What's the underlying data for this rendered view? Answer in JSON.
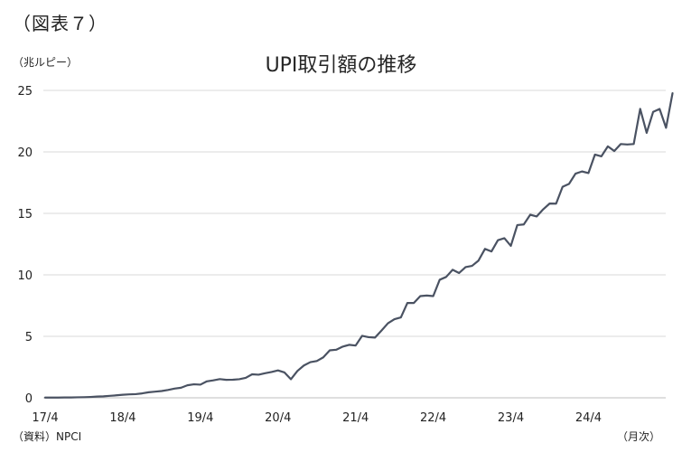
{
  "figure_label": "（図表７）",
  "unit_label": "（兆ルピー）",
  "source_label": "（資料）NPCI",
  "x_unit_label": "（月次）",
  "colors": {
    "line": "#4a5262",
    "grid": "#d9d9d9",
    "axis": "#bfbfbf"
  },
  "chart_data": {
    "type": "line",
    "title": "UPI取引額の推移",
    "xlabel": "",
    "ylabel": "",
    "ylim": [
      0,
      25
    ],
    "yticks": [
      "0",
      "5",
      "10",
      "15",
      "20",
      "25"
    ],
    "xticks": [
      "17/4",
      "18/4",
      "19/4",
      "20/4",
      "21/4",
      "22/4",
      "23/4",
      "24/4"
    ],
    "x_start": "2017-04",
    "grid": true,
    "legend": "none",
    "series": [
      {
        "values": [
          0.02,
          0.02,
          0.02,
          0.03,
          0.03,
          0.04,
          0.05,
          0.07,
          0.1,
          0.12,
          0.16,
          0.2,
          0.25,
          0.28,
          0.3,
          0.36,
          0.45,
          0.5,
          0.55,
          0.64,
          0.75,
          0.82,
          1.02,
          1.1,
          1.07,
          1.34,
          1.42,
          1.52,
          1.46,
          1.47,
          1.51,
          1.62,
          1.91,
          1.88,
          2.0,
          2.1,
          2.23,
          2.06,
          1.51,
          2.18,
          2.63,
          2.9,
          2.99,
          3.29,
          3.86,
          3.91,
          4.16,
          4.31,
          4.25,
          5.04,
          4.93,
          4.9,
          5.47,
          6.06,
          6.39,
          6.54,
          7.71,
          7.71,
          8.27,
          8.32,
          8.27,
          9.6,
          9.83,
          10.41,
          10.15,
          10.63,
          10.73,
          11.16,
          12.11,
          11.9,
          12.82,
          12.98,
          12.36,
          14.05,
          14.1,
          14.89,
          14.75,
          15.33,
          15.8,
          15.79,
          17.16,
          17.4,
          18.23,
          18.41,
          18.28,
          19.78,
          19.64,
          20.45,
          20.07,
          20.64,
          20.6,
          20.64,
          23.5,
          21.55,
          23.25,
          23.49,
          21.96,
          24.77
        ]
      }
    ]
  }
}
